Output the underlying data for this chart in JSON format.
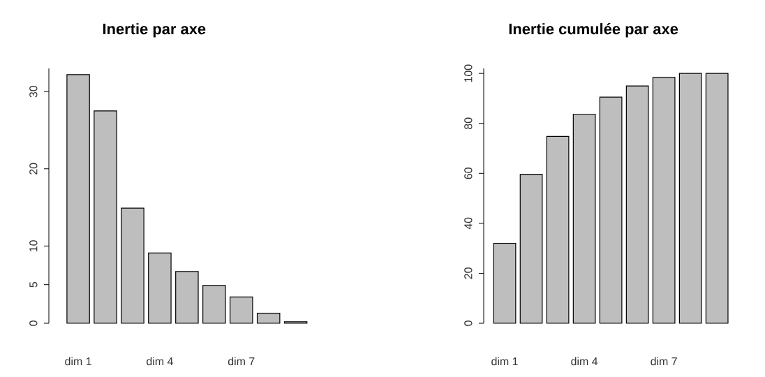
{
  "chart_data": [
    {
      "type": "bar",
      "title": "Inertie par axe",
      "categories": [
        "dim 1",
        null,
        null,
        "dim 4",
        null,
        null,
        "dim 7",
        null,
        null
      ],
      "values": [
        32.2,
        27.5,
        14.9,
        9.1,
        6.7,
        4.9,
        3.4,
        1.3,
        0.2
      ],
      "color": "#bebebe",
      "ylim": [
        0,
        33
      ],
      "yticks": [
        0,
        5,
        10,
        20,
        30
      ]
    },
    {
      "type": "bar",
      "title": "Inertie cumulée par axe",
      "categories": [
        "dim 1",
        null,
        null,
        "dim 4",
        null,
        null,
        "dim 7",
        null,
        null
      ],
      "values": [
        32.0,
        59.6,
        74.8,
        83.7,
        90.5,
        95.0,
        98.4,
        100,
        100
      ],
      "color": "#bebebe",
      "ylim": [
        0,
        102
      ],
      "yticks": [
        0,
        20,
        40,
        60,
        80,
        100
      ]
    }
  ]
}
